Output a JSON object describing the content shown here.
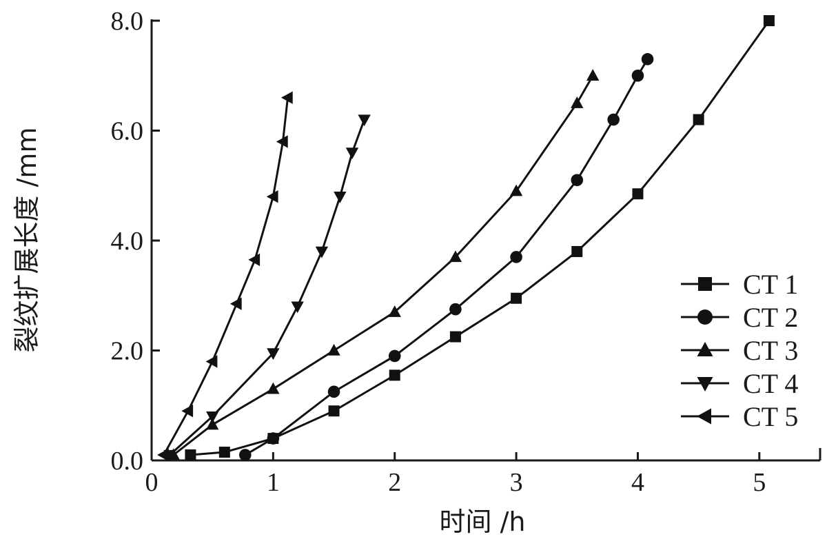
{
  "chart_data": {
    "type": "line",
    "title": "",
    "xlabel": "时间 /h",
    "ylabel": "裂纹扩展长度 /mm",
    "xlim": [
      0,
      5.5
    ],
    "ylim": [
      0,
      8.0
    ],
    "x_ticks": [
      0,
      1,
      2,
      3,
      4,
      5
    ],
    "y_ticks": [
      0.0,
      2.0,
      4.0,
      6.0,
      8.0
    ],
    "x_tick_labels": [
      "0",
      "1",
      "2",
      "3",
      "4",
      "5"
    ],
    "y_tick_labels": [
      "0.0",
      "2.0",
      "4.0",
      "6.0",
      "8.0"
    ],
    "grid": false,
    "legend_position": "right",
    "series": [
      {
        "name": "CT 1",
        "marker": "square",
        "x": [
          0.32,
          0.6,
          1.0,
          1.5,
          2.0,
          2.5,
          3.0,
          3.5,
          4.0,
          4.5,
          5.08
        ],
        "y": [
          0.1,
          0.15,
          0.4,
          0.9,
          1.55,
          2.25,
          2.95,
          3.8,
          4.85,
          6.2,
          8.0
        ]
      },
      {
        "name": "CT 2",
        "marker": "circle",
        "x": [
          0.77,
          1.0,
          1.5,
          2.0,
          2.5,
          3.0,
          3.5,
          3.8,
          4.0,
          4.08
        ],
        "y": [
          0.1,
          0.4,
          1.25,
          1.9,
          2.75,
          3.7,
          5.1,
          6.2,
          7.0,
          7.3
        ]
      },
      {
        "name": "CT 3",
        "marker": "triangle-up",
        "x": [
          0.18,
          0.5,
          1.0,
          1.5,
          2.0,
          2.5,
          3.0,
          3.5,
          3.63
        ],
        "y": [
          0.1,
          0.65,
          1.3,
          2.0,
          2.7,
          3.7,
          4.9,
          6.5,
          7.0
        ]
      },
      {
        "name": "CT 4",
        "marker": "triangle-down",
        "x": [
          0.15,
          0.5,
          1.0,
          1.2,
          1.4,
          1.55,
          1.65,
          1.75
        ],
        "y": [
          0.1,
          0.8,
          1.95,
          2.8,
          3.8,
          4.8,
          5.6,
          6.2
        ]
      },
      {
        "name": "CT 5",
        "marker": "triangle-left",
        "x": [
          0.1,
          0.3,
          0.5,
          0.7,
          0.85,
          1.0,
          1.08,
          1.12
        ],
        "y": [
          0.1,
          0.9,
          1.8,
          2.85,
          3.65,
          4.8,
          5.8,
          6.6
        ]
      }
    ]
  }
}
